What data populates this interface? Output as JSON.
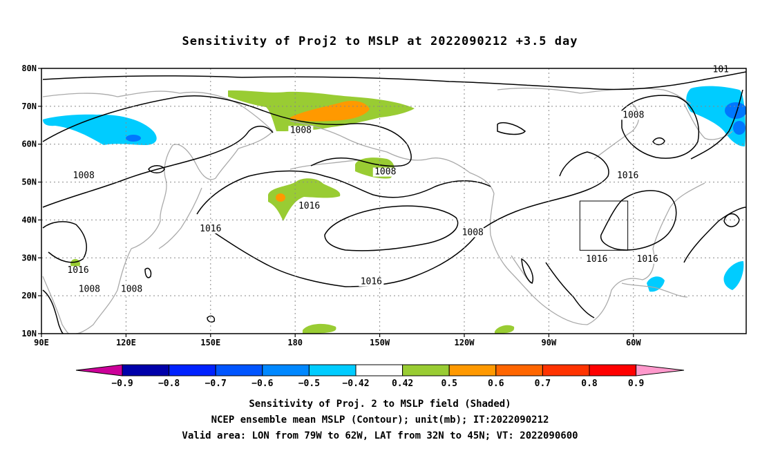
{
  "title": "Sensitivity of Proj2 to MSLP at 2022090212 +3.5 day",
  "map": {
    "lon_labels": [
      "90E",
      "120E",
      "150E",
      "180",
      "150W",
      "120W",
      "90W",
      "60W"
    ],
    "lat_labels": [
      "80N",
      "70N",
      "60N",
      "50N",
      "40N",
      "30N",
      "20N",
      "10N"
    ],
    "contour_labels": [
      {
        "text": "1008",
        "lon": 182,
        "lat": 63
      },
      {
        "text": "1008",
        "lon": 212,
        "lat": 52
      },
      {
        "text": "1008",
        "lon": 300,
        "lat": 67
      },
      {
        "text": "1008",
        "lon": 105,
        "lat": 51
      },
      {
        "text": "1016",
        "lon": 185,
        "lat": 43
      },
      {
        "text": "1016",
        "lon": 298,
        "lat": 51
      },
      {
        "text": "1016",
        "lon": 150,
        "lat": 37
      },
      {
        "text": "1016",
        "lon": 207,
        "lat": 23
      },
      {
        "text": "1016",
        "lon": 103,
        "lat": 26
      },
      {
        "text": "1016",
        "lon": 287,
        "lat": 29
      },
      {
        "text": "1016",
        "lon": 305,
        "lat": 29
      },
      {
        "text": "1008",
        "lon": 243,
        "lat": 36
      },
      {
        "text": "1008",
        "lon": 107,
        "lat": 21
      },
      {
        "text": "1008",
        "lon": 122,
        "lat": 21
      },
      {
        "text": "101",
        "lon": 331,
        "lat": 79
      }
    ],
    "valid_box": {
      "lon_min": 281,
      "lon_max": 298,
      "lat_min": 32,
      "lat_max": 45
    },
    "colors": {
      "green": "#99cc33",
      "orange": "#ff9900",
      "lightblue": "#00ccff",
      "midblue": "#0077ff",
      "coast": "#aaaaaa"
    }
  },
  "colorbar": {
    "labels": [
      "−0.9",
      "−0.8",
      "−0.7",
      "−0.6",
      "−0.5",
      "−0.42",
      "0.42",
      "0.5",
      "0.6",
      "0.7",
      "0.8",
      "0.9"
    ],
    "colors": [
      "#0000aa",
      "#0022ff",
      "#0055ff",
      "#0088ff",
      "#00ccff",
      "#ffffff",
      "#99cc33",
      "#ff9900",
      "#ff6600",
      "#ff3300",
      "#ff0000"
    ],
    "low_end_color": "#cc0099",
    "high_end_color": "#ff99cc"
  },
  "footer": {
    "line1": "Sensitivity of Proj. 2 to MSLP field (Shaded)",
    "line2": "NCEP ensemble mean MSLP (Contour); unit(mb); IT:2022090212",
    "line3": "Valid area: LON from 79W to 62W, LAT from 32N to 45N; VT: 2022090600"
  }
}
